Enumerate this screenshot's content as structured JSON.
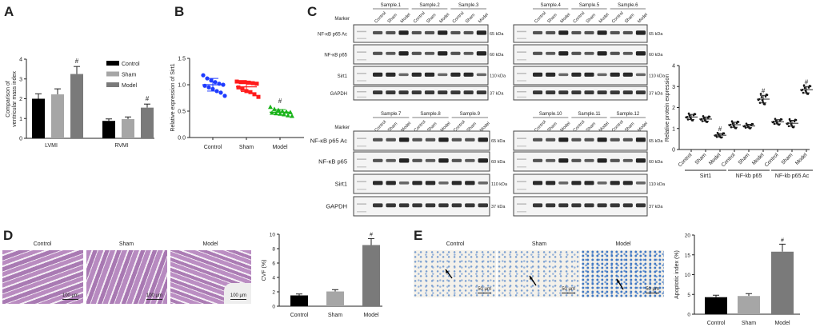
{
  "panel_labels": {
    "A": "A",
    "B": "B",
    "C": "C",
    "D": "D",
    "E": "E"
  },
  "chart_data": [
    {
      "id": "A",
      "type": "bar",
      "title": "",
      "ylabel": [
        "Comparison of",
        "ventricular mass index"
      ],
      "xlabel": "",
      "categories": [
        "LVMI",
        "RVMI"
      ],
      "series": [
        {
          "name": "Control",
          "values": [
            2.0,
            0.88
          ],
          "errors": [
            0.25,
            0.1
          ],
          "color": "#000000"
        },
        {
          "name": "Sham",
          "values": [
            2.22,
            0.97
          ],
          "errors": [
            0.28,
            0.11
          ],
          "color": "#a6a6a6"
        },
        {
          "name": "Model",
          "values": [
            3.25,
            1.55
          ],
          "errors": [
            0.38,
            0.18
          ],
          "color": "#7a7a7a",
          "annotation": "#"
        }
      ],
      "ylim": [
        0,
        4
      ],
      "yticks": [
        "0",
        "1",
        "2",
        "3",
        "4"
      ],
      "legend": "top-right"
    },
    {
      "id": "B",
      "type": "scatter",
      "ylabel": "Relative expression of Sirt1",
      "categories": [
        "Control",
        "Sham",
        "Model"
      ],
      "colors": [
        "#1f3cff",
        "#ff1a1a",
        "#19b319"
      ],
      "markers": [
        "circle",
        "square",
        "triangle"
      ],
      "means": [
        1.0,
        0.96,
        0.48
      ],
      "sd": [
        0.12,
        0.09,
        0.05
      ],
      "points": [
        [
          1.18,
          1.12,
          1.08,
          1.05,
          1.02,
          1.0,
          0.98,
          0.95,
          0.92,
          0.88,
          0.85,
          0.79
        ],
        [
          1.06,
          1.05,
          1.05,
          1.04,
          1.03,
          1.02,
          0.95,
          0.92,
          0.88,
          0.86,
          0.82,
          0.77
        ],
        [
          0.58,
          0.54,
          0.52,
          0.5,
          0.49,
          0.48,
          0.47,
          0.46,
          0.45,
          0.44,
          0.42,
          0.41
        ]
      ],
      "annotations": [
        "",
        "",
        "#"
      ],
      "ylim": [
        0,
        1.5
      ],
      "yticks": [
        "0.0",
        "0.5",
        "1.0",
        "1.5"
      ]
    },
    {
      "id": "C-quant",
      "type": "scatter",
      "ylabel": "Relative protein expression",
      "groups": [
        "Sirt1",
        "NF-kb p65",
        "NF-kb p65 Ac"
      ],
      "categories": [
        "Control",
        "Sham",
        "Model"
      ],
      "means": [
        [
          1.55,
          1.45,
          0.68
        ],
        [
          1.18,
          1.12,
          2.4
        ],
        [
          1.32,
          1.25,
          2.85
        ]
      ],
      "sd": [
        [
          0.12,
          0.1,
          0.08
        ],
        [
          0.12,
          0.08,
          0.18
        ],
        [
          0.1,
          0.14,
          0.15
        ]
      ],
      "annotations": [
        [
          "",
          "",
          "#"
        ],
        [
          "",
          "",
          "#"
        ],
        [
          "",
          "",
          "#"
        ]
      ],
      "ylim": [
        0,
        4
      ],
      "yticks": [
        "0",
        "1",
        "2",
        "3",
        "4"
      ],
      "color": "#000000"
    },
    {
      "id": "D",
      "type": "bar",
      "ylabel": "CVF (%)",
      "categories": [
        "Control",
        "Sham",
        "Model"
      ],
      "values": [
        1.5,
        2.05,
        8.5
      ],
      "errors": [
        0.2,
        0.25,
        0.9
      ],
      "colors": [
        "#000000",
        "#a6a6a6",
        "#7a7a7a"
      ],
      "annotations": [
        "",
        "",
        "#"
      ],
      "ylim": [
        0,
        10
      ],
      "yticks": [
        "0",
        "2",
        "4",
        "6",
        "8",
        "10"
      ]
    },
    {
      "id": "E",
      "type": "bar",
      "ylabel": "Apoptotic index (%)",
      "categories": [
        "Control",
        "Sham",
        "Model"
      ],
      "values": [
        4.3,
        4.6,
        15.8
      ],
      "errors": [
        0.5,
        0.6,
        1.9
      ],
      "colors": [
        "#000000",
        "#a6a6a6",
        "#7a7a7a"
      ],
      "annotations": [
        "",
        "",
        "#"
      ],
      "ylim": [
        0,
        20
      ],
      "yticks": [
        "0",
        "5",
        "10",
        "15",
        "20"
      ]
    }
  ],
  "western_blots": {
    "marker_label": "Marker",
    "lane_labels": [
      "Control",
      "Sham",
      "Model"
    ],
    "proteins": [
      "NF-κB p65 Ac",
      "NF-κB p65",
      "Sirt1",
      "GAPDH"
    ],
    "kda": [
      "65 kDa",
      "60 kDa",
      "110 kDa",
      "37 kDa"
    ],
    "band_intensity": [
      [
        0.6,
        0.6,
        0.95
      ],
      [
        0.6,
        0.55,
        0.95
      ],
      [
        0.9,
        0.9,
        0.45
      ],
      [
        0.8,
        0.8,
        0.8
      ]
    ],
    "panels": [
      {
        "samples": [
          "Sample.1",
          "Sample.2",
          "Sample.3"
        ]
      },
      {
        "samples": [
          "Sample.4",
          "Sample.5",
          "Sample.6"
        ]
      },
      {
        "samples": [
          "Sample.7",
          "Sample.8",
          "Sample.9"
        ]
      },
      {
        "samples": [
          "Sample.10",
          "Sample.11",
          "Sample.12"
        ]
      }
    ]
  },
  "histology": {
    "D": {
      "titles": [
        "Control",
        "Sham",
        "Model"
      ],
      "scale_bar": "100 μm"
    },
    "E": {
      "titles": [
        "Control",
        "Sham",
        "Model"
      ],
      "scale_bar": "50 μm"
    }
  }
}
